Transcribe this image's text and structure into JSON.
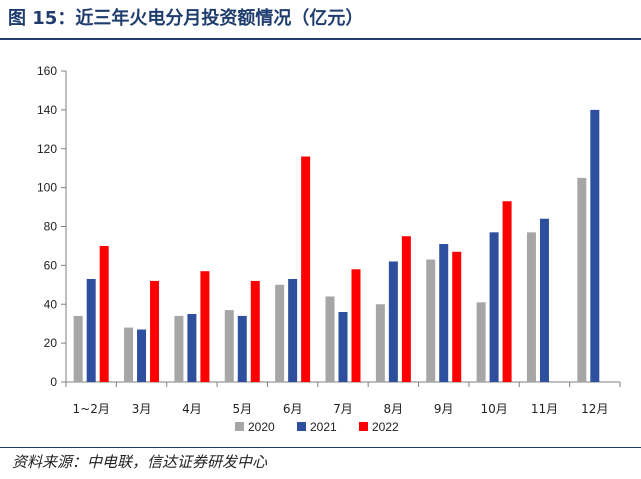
{
  "header": {
    "title": "图 15：近三年火电分月投资额情况（亿元）"
  },
  "footer": {
    "source": "资料来源：中电联，信达证券研发中心"
  },
  "chart_data": {
    "type": "bar",
    "categories": [
      "1~2月",
      "3月",
      "4月",
      "5月",
      "6月",
      "7月",
      "8月",
      "9月",
      "10月",
      "11月",
      "12月"
    ],
    "series": [
      {
        "name": "2020",
        "color": "#a6a6a6",
        "values": [
          34,
          28,
          34,
          37,
          50,
          44,
          40,
          63,
          41,
          77,
          105
        ]
      },
      {
        "name": "2021",
        "color": "#2e4f9e",
        "values": [
          53,
          27,
          35,
          34,
          53,
          36,
          62,
          71,
          77,
          84,
          140
        ]
      },
      {
        "name": "2022",
        "color": "#ff0000",
        "values": [
          70,
          52,
          57,
          52,
          116,
          58,
          75,
          67,
          93,
          null,
          null
        ]
      }
    ],
    "yticks": [
      0,
      20,
      40,
      60,
      80,
      100,
      120,
      140,
      160
    ],
    "ylim": [
      0,
      160
    ],
    "legend_position": "bottom",
    "grid": false
  }
}
